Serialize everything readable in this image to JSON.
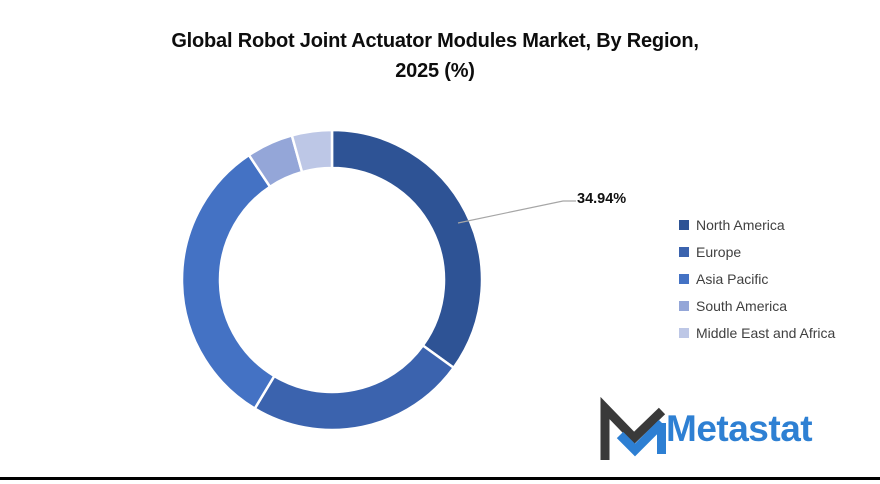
{
  "title": {
    "line1": "Global Robot Joint Actuator Modules Market, By Region,",
    "line2": "2025 (%)"
  },
  "chart_data": {
    "type": "pie",
    "subtype": "donut",
    "title": "Global Robot Joint Actuator Modules Market, By Region, 2025 (%)",
    "categories": [
      "North America",
      "Europe",
      "Asia Pacific",
      "South America",
      "Middle East and Africa"
    ],
    "values": [
      34.94,
      23.67,
      32.05,
      5.03,
      4.31
    ],
    "labeled_values": {
      "North America": "34.94%"
    },
    "colors": [
      "#2e5395",
      "#3b63ae",
      "#4472c4",
      "#94a6d8",
      "#bdc7e6"
    ],
    "start_angle_deg": 0,
    "direction": "clockwise",
    "donut_hole_ratio": 0.75,
    "legend_position": "right"
  },
  "callout": {
    "label": "34.94%",
    "series": "North America"
  },
  "legend": {
    "items": [
      {
        "label": "North America",
        "color": "#2e5395"
      },
      {
        "label": "Europe",
        "color": "#3b63ae"
      },
      {
        "label": "Asia Pacific",
        "color": "#4472c4"
      },
      {
        "label": "South America",
        "color": "#94a6d8"
      },
      {
        "label": "Middle East and Africa",
        "color": "#bdc7e6"
      }
    ]
  },
  "logo": {
    "text": "Metastat",
    "text_color": "#2e80d3",
    "mark_dark_color": "#3a3a3a",
    "mark_blue_color": "#2d7fd3"
  },
  "leader_line_color": "#a6a6a6"
}
